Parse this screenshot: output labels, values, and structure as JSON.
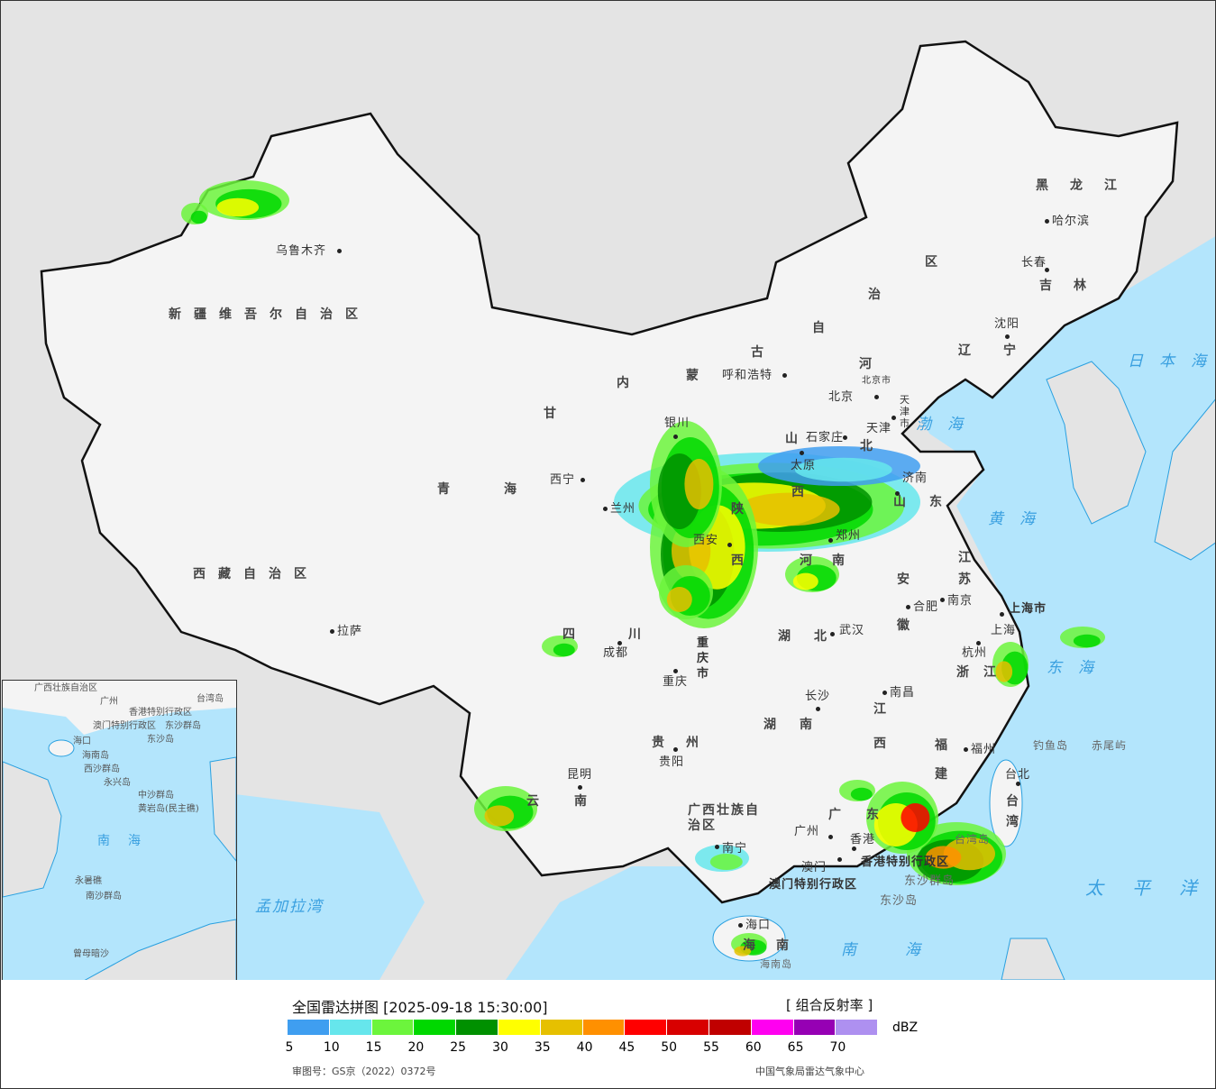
{
  "map": {
    "provinces": [
      "新疆维吾尔自治区",
      "西藏自治区",
      "青海",
      "甘",
      "内",
      "蒙",
      "古",
      "自",
      "治",
      "区",
      "黑龙江",
      "吉林",
      "辽宁",
      "河",
      "山",
      "西",
      "陕",
      "西",
      "河",
      "南",
      "湖",
      "北",
      "湖",
      "南",
      "四",
      "川",
      "贵州",
      "云",
      "南",
      "广西壮族自治区",
      "广",
      "东",
      "江",
      "西",
      "福",
      "建",
      "安",
      "徽",
      "江",
      "苏",
      "浙",
      "江",
      "山",
      "东",
      "海",
      "南",
      "北",
      "台",
      "湾",
      "重庆市",
      "上海市",
      "天津市",
      "北京市"
    ],
    "cities": [
      "乌鲁木齐",
      "拉萨",
      "西宁",
      "兰州",
      "银川",
      "呼和浩特",
      "北京",
      "天津",
      "石家庄",
      "太原",
      "济南",
      "西安",
      "郑州",
      "合肥",
      "南京",
      "上海",
      "杭州",
      "武汉",
      "长沙",
      "南昌",
      "福州",
      "台北",
      "成都",
      "重庆",
      "贵阳",
      "昆明",
      "南宁",
      "广州",
      "澳门",
      "香港",
      "海口",
      "哈尔滨",
      "长春",
      "沈阳"
    ],
    "special": [
      "香港特别行政区",
      "澳门特别行政区",
      "东沙群岛",
      "东沙岛",
      "钓鱼岛",
      "赤尾屿",
      "台湾岛",
      "海南岛"
    ],
    "seas": [
      "渤海",
      "黄海",
      "东海",
      "日本海",
      "太平洋",
      "南海",
      "孟加拉湾"
    ],
    "inset": [
      "广西壮族自治区",
      "广州",
      "澳门特别行政区",
      "香港特别行政区",
      "东沙群岛",
      "东沙岛",
      "海口",
      "海南岛",
      "西沙群岛",
      "永兴岛",
      "中沙群岛",
      "黄岩岛(民主礁)",
      "南海",
      "永暑礁",
      "南沙群岛",
      "曾母暗沙",
      "台湾岛"
    ]
  },
  "legend": {
    "title": "全国雷达拼图 [2025-09-18 15:30:00]",
    "product": "[ 组合反射率 ]",
    "unit": "dBZ",
    "ticks": [
      "5",
      "10",
      "15",
      "20",
      "25",
      "30",
      "35",
      "40",
      "45",
      "50",
      "55",
      "60",
      "65",
      "70"
    ],
    "colors": [
      "#3f9ef0",
      "#66e6ec",
      "#6cf53c",
      "#00d800",
      "#009000",
      "#ffff00",
      "#e6c000",
      "#ff9000",
      "#ff0000",
      "#d80000",
      "#c00000",
      "#ff00f0",
      "#9600b4",
      "#ae90f0"
    ],
    "approval": "审图号：GS京（2022）0372号",
    "source": "中国气象局雷达气象中心"
  },
  "colors": {
    "sea": "#b3e5fc",
    "land": "#f4f4f4",
    "foreign": "#e4e4e4",
    "border": "#111111"
  }
}
